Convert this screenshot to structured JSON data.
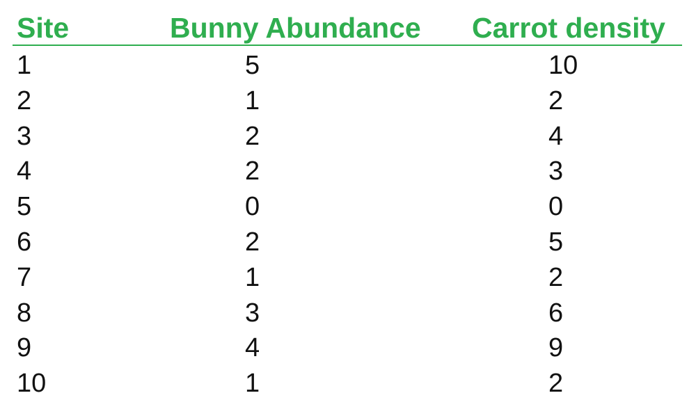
{
  "theme": {
    "header_color": "#2fae4f",
    "text_color": "#111111"
  },
  "chart_data": {
    "type": "table",
    "columns": [
      "Site",
      "Bunny Abundance",
      "Carrot density"
    ],
    "rows": [
      [
        "1",
        "5",
        "10"
      ],
      [
        "2",
        "1",
        "2"
      ],
      [
        "3",
        "2",
        "4"
      ],
      [
        "4",
        "2",
        "3"
      ],
      [
        "5",
        "0",
        "0"
      ],
      [
        "6",
        "2",
        "5"
      ],
      [
        "7",
        "1",
        "2"
      ],
      [
        "8",
        "3",
        "6"
      ],
      [
        "9",
        "4",
        "9"
      ],
      [
        "10",
        "1",
        "2"
      ]
    ]
  }
}
